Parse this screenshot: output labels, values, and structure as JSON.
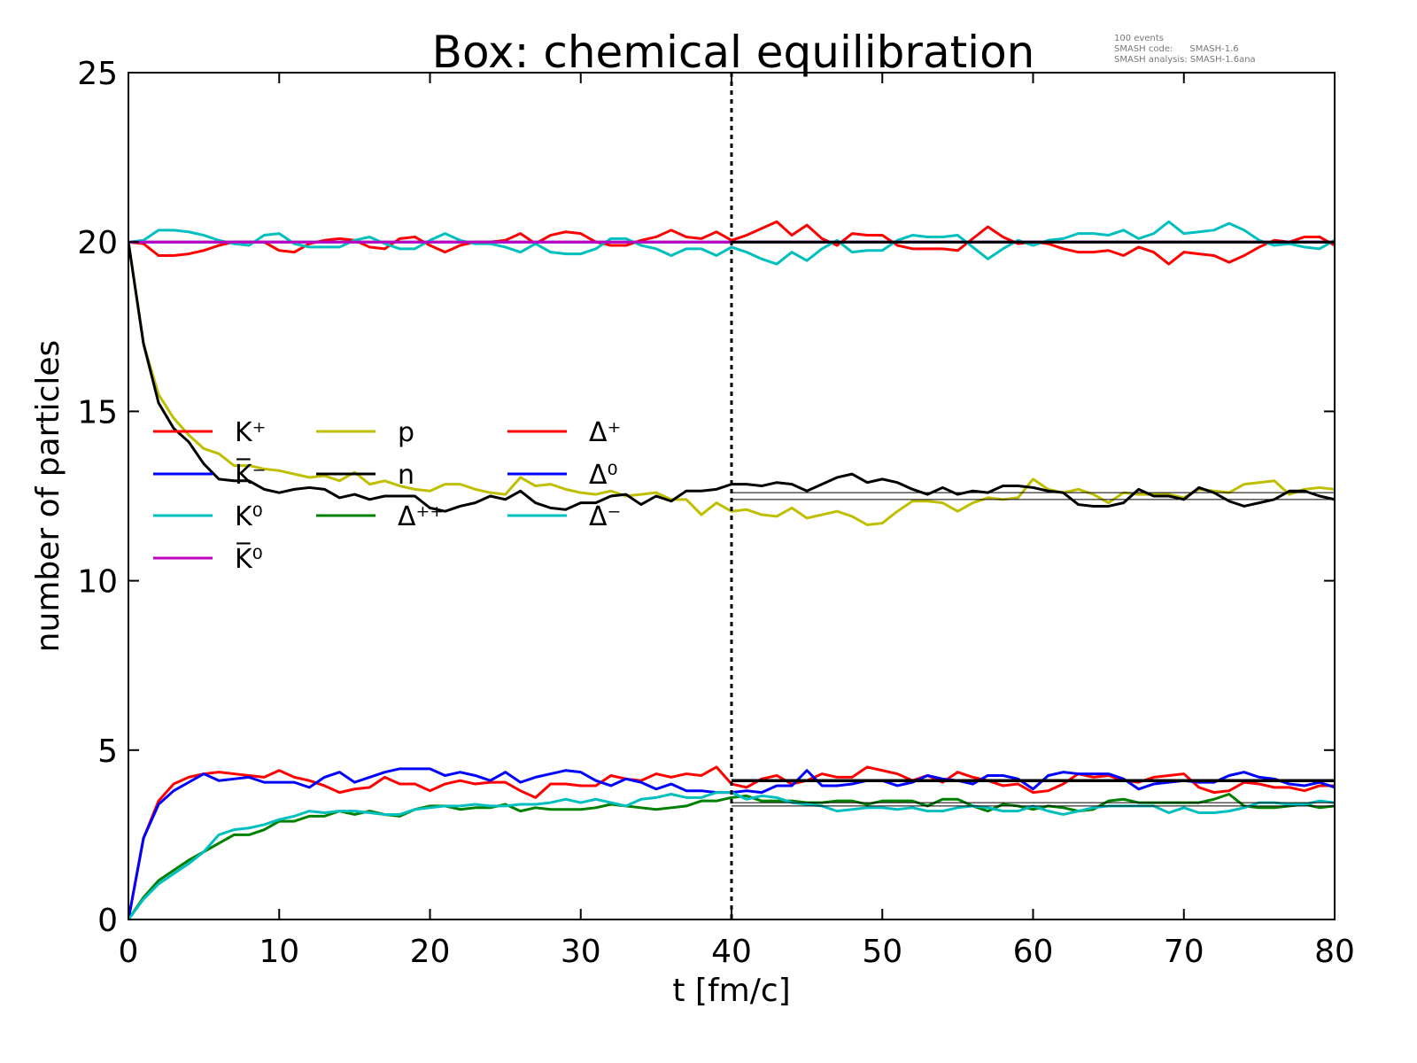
{
  "chart_data": {
    "type": "line",
    "title": "Box: chemical equilibration",
    "annotation": [
      "100 events",
      "SMASH code:      SMASH-1.6",
      "SMASH analysis: SMASH-1.6ana"
    ],
    "xlabel": "t [fm/c]",
    "ylabel": "number of particles",
    "xlim": [
      0,
      80
    ],
    "ylim": [
      0,
      25
    ],
    "xticks": [
      0,
      10,
      20,
      30,
      40,
      50,
      60,
      70,
      80
    ],
    "yticks": [
      0,
      5,
      10,
      15,
      20,
      25
    ],
    "grid": false,
    "legend_placement": "center-left",
    "x_start": 0,
    "x_step": 1,
    "vertical_marker": 40,
    "reference_lines": [
      20,
      12.6,
      12.4,
      4.12,
      4.08,
      3.45,
      3.35
    ],
    "series": [
      {
        "name": "K⁺",
        "color": "#ff0000",
        "values": [
          20,
          19.95,
          19.6,
          19.6,
          19.65,
          19.75,
          19.9,
          20,
          20,
          20,
          19.75,
          19.7,
          19.95,
          20.05,
          20.1,
          20.05,
          19.85,
          19.8,
          20.1,
          20.15,
          19.9,
          19.7,
          19.9,
          20,
          20,
          20.05,
          20.25,
          19.95,
          20.2,
          20.3,
          20.25,
          20,
          19.9,
          19.9,
          20.05,
          20.15,
          20.35,
          20.15,
          20.1,
          20.3,
          20.05,
          20.2,
          20.4,
          20.6,
          20.2,
          20.5,
          20.1,
          19.9,
          20.25,
          20.2,
          20.2,
          19.9,
          19.8,
          19.8,
          19.8,
          19.75,
          20.1,
          20.45,
          20.15,
          19.95,
          20,
          19.95,
          19.8,
          19.7,
          19.7,
          19.75,
          19.6,
          19.85,
          19.7,
          19.35,
          19.7,
          19.65,
          19.6,
          19.4,
          19.6,
          19.85,
          20.05,
          20,
          20.15,
          20.15,
          19.9
        ]
      },
      {
        "name": "K̅⁻",
        "color": "#0000ff",
        "values": [
          20,
          20,
          20,
          20,
          20,
          20,
          20,
          20,
          20,
          20,
          20,
          20,
          20,
          20,
          20,
          20,
          20,
          20,
          20,
          20,
          20,
          20,
          20,
          20,
          20,
          20,
          20,
          20,
          20,
          20,
          20,
          20,
          20,
          20,
          20,
          20,
          20,
          20,
          20,
          20,
          20,
          20,
          20,
          20,
          20,
          20,
          20,
          20,
          20,
          20,
          20,
          20,
          20,
          20,
          20,
          20,
          20,
          20,
          20,
          20,
          20,
          20,
          20,
          20,
          20,
          20,
          20,
          20,
          20,
          20,
          20,
          20,
          20,
          20,
          20,
          20,
          20,
          20,
          20,
          20,
          20
        ]
      },
      {
        "name": "K⁰",
        "color": "#00bfbf",
        "values": [
          20,
          20.05,
          20.35,
          20.35,
          20.3,
          20.2,
          20.05,
          19.95,
          19.9,
          20.2,
          20.25,
          19.95,
          19.85,
          19.85,
          19.85,
          20.05,
          20.15,
          19.95,
          19.8,
          19.8,
          20.05,
          20.25,
          20.05,
          19.95,
          19.95,
          19.85,
          19.7,
          19.95,
          19.7,
          19.65,
          19.65,
          19.8,
          20.1,
          20.1,
          19.9,
          19.8,
          19.6,
          19.8,
          19.8,
          19.6,
          19.85,
          19.7,
          19.5,
          19.35,
          19.7,
          19.45,
          19.8,
          20.05,
          19.7,
          19.75,
          19.75,
          20.05,
          20.2,
          20.15,
          20.15,
          20.2,
          19.85,
          19.5,
          19.8,
          20.05,
          19.9,
          20.05,
          20.1,
          20.25,
          20.25,
          20.2,
          20.35,
          20.1,
          20.25,
          20.6,
          20.25,
          20.3,
          20.35,
          20.55,
          20.35,
          20.05,
          19.9,
          19.95,
          19.85,
          19.8,
          20.05
        ]
      },
      {
        "name": "K̅⁰",
        "color": "#bf00bf",
        "values": [
          20,
          20,
          20,
          20,
          20,
          20,
          20,
          20,
          20,
          20,
          20,
          20,
          20,
          20,
          20,
          20,
          20,
          20,
          20,
          20,
          20,
          20,
          20,
          20,
          20,
          20,
          20,
          20,
          20,
          20,
          20,
          20,
          20,
          20,
          20,
          20,
          20,
          20,
          20,
          20,
          20,
          20,
          20,
          20,
          20,
          20,
          20,
          20,
          20,
          20,
          20,
          20,
          20,
          20,
          20,
          20,
          20,
          20,
          20,
          20,
          20,
          20,
          20,
          20,
          20,
          20,
          20,
          20,
          20,
          20,
          20,
          20,
          20,
          20,
          20,
          20,
          20,
          20,
          20,
          20,
          20
        ]
      },
      {
        "name": "p",
        "color": "#bfbf00",
        "values": [
          20,
          17,
          15.5,
          14.8,
          14.3,
          13.9,
          13.75,
          13.4,
          13.4,
          13.3,
          13.25,
          13.15,
          13.05,
          13.1,
          12.95,
          13.2,
          12.85,
          12.95,
          12.8,
          12.7,
          12.65,
          12.85,
          12.85,
          12.7,
          12.6,
          12.55,
          13.05,
          12.8,
          12.85,
          12.7,
          12.6,
          12.55,
          12.65,
          12.5,
          12.55,
          12.6,
          12.4,
          12.4,
          11.95,
          12.3,
          12.05,
          12.1,
          11.95,
          11.9,
          12.15,
          11.85,
          11.95,
          12.05,
          11.9,
          11.65,
          11.7,
          12.05,
          12.35,
          12.35,
          12.3,
          12.05,
          12.3,
          12.45,
          12.4,
          12.45,
          13,
          12.7,
          12.6,
          12.7,
          12.55,
          12.3,
          12.6,
          12.55,
          12.55,
          12.55,
          12.45,
          12.7,
          12.65,
          12.6,
          12.85,
          12.9,
          12.95,
          12.55,
          12.7,
          12.75,
          12.7
        ]
      },
      {
        "name": "n",
        "color": "#000000",
        "values": [
          20,
          17,
          15.25,
          14.5,
          14.1,
          13.45,
          13,
          12.95,
          12.95,
          12.7,
          12.6,
          12.7,
          12.75,
          12.7,
          12.45,
          12.55,
          12.4,
          12.5,
          12.5,
          12.5,
          12.15,
          12.05,
          12.2,
          12.3,
          12.5,
          12.4,
          12.65,
          12.3,
          12.15,
          12.1,
          12.3,
          12.3,
          12.5,
          12.55,
          12.25,
          12.5,
          12.35,
          12.65,
          12.65,
          12.7,
          12.85,
          12.85,
          12.8,
          12.9,
          12.85,
          12.65,
          12.85,
          13.05,
          13.15,
          12.9,
          13,
          12.9,
          12.7,
          12.55,
          12.75,
          12.55,
          12.65,
          12.6,
          12.8,
          12.8,
          12.75,
          12.65,
          12.6,
          12.25,
          12.2,
          12.2,
          12.3,
          12.7,
          12.5,
          12.5,
          12.4,
          12.75,
          12.6,
          12.35,
          12.2,
          12.3,
          12.4,
          12.65,
          12.65,
          12.5,
          12.4
        ]
      },
      {
        "name": "Δ⁺⁺",
        "color": "#008000",
        "values": [
          0,
          0.65,
          1.15,
          1.45,
          1.75,
          2,
          2.25,
          2.5,
          2.5,
          2.65,
          2.9,
          2.9,
          3.05,
          3.05,
          3.2,
          3.1,
          3.2,
          3.1,
          3.05,
          3.25,
          3.35,
          3.35,
          3.25,
          3.3,
          3.3,
          3.4,
          3.2,
          3.3,
          3.25,
          3.25,
          3.25,
          3.3,
          3.4,
          3.35,
          3.3,
          3.25,
          3.3,
          3.35,
          3.5,
          3.5,
          3.6,
          3.65,
          3.5,
          3.5,
          3.5,
          3.45,
          3.45,
          3.5,
          3.5,
          3.4,
          3.5,
          3.5,
          3.5,
          3.35,
          3.55,
          3.55,
          3.35,
          3.2,
          3.4,
          3.35,
          3.25,
          3.35,
          3.3,
          3.2,
          3.25,
          3.5,
          3.55,
          3.45,
          3.45,
          3.45,
          3.45,
          3.45,
          3.55,
          3.7,
          3.35,
          3.3,
          3.3,
          3.35,
          3.4,
          3.3,
          3.35
        ]
      },
      {
        "name": "Δ⁺",
        "color": "#ff0000",
        "values": [
          0,
          2.4,
          3.5,
          4,
          4.2,
          4.3,
          4.35,
          4.3,
          4.25,
          4.2,
          4.4,
          4.2,
          4.1,
          3.95,
          3.75,
          3.85,
          3.9,
          4.2,
          4,
          4,
          3.8,
          4,
          4.1,
          4,
          4.05,
          4.05,
          3.8,
          3.6,
          4,
          4,
          3.95,
          3.95,
          4.25,
          4.15,
          4.1,
          4.3,
          4.2,
          4.3,
          4.25,
          4.5,
          4,
          3.9,
          4.15,
          4.25,
          4,
          4.1,
          4.3,
          4.2,
          4.2,
          4.5,
          4.4,
          4.3,
          4.1,
          4.25,
          4.05,
          4.35,
          4.2,
          4.1,
          3.95,
          4,
          3.75,
          3.8,
          4,
          4.3,
          4.2,
          4.25,
          4.1,
          4.05,
          4.2,
          4.25,
          4.3,
          3.9,
          3.75,
          3.8,
          4.05,
          4,
          3.9,
          3.9,
          3.8,
          3.95,
          3.95
        ]
      },
      {
        "name": "Δ⁰",
        "color": "#0000ff",
        "values": [
          0,
          2.4,
          3.4,
          3.8,
          4.05,
          4.3,
          4.1,
          4.15,
          4.2,
          4.05,
          4.05,
          4.05,
          3.9,
          4.2,
          4.35,
          4.05,
          4.2,
          4.35,
          4.45,
          4.45,
          4.45,
          4.25,
          4.35,
          4.25,
          4.1,
          4.35,
          4.05,
          4.2,
          4.3,
          4.4,
          4.35,
          4.1,
          3.95,
          4.15,
          4.05,
          3.85,
          4,
          3.8,
          3.8,
          3.75,
          3.75,
          3.8,
          3.75,
          3.95,
          3.95,
          4.4,
          3.95,
          3.95,
          4,
          4.1,
          4.1,
          3.95,
          4.05,
          4.25,
          4.15,
          4.1,
          4,
          4.25,
          4.25,
          4.15,
          3.85,
          4.25,
          4.35,
          4.3,
          4.3,
          4.3,
          4.15,
          3.85,
          4,
          4.05,
          4.1,
          4.05,
          4.05,
          4.25,
          4.35,
          4.2,
          4.15,
          4,
          3.95,
          4.05,
          3.9
        ]
      },
      {
        "name": "Δ⁻",
        "color": "#00bfbf",
        "values": [
          0,
          0.6,
          1.05,
          1.35,
          1.65,
          2,
          2.5,
          2.65,
          2.7,
          2.8,
          2.95,
          3.05,
          3.2,
          3.15,
          3.2,
          3.2,
          3.15,
          3.1,
          3.1,
          3.25,
          3.3,
          3.35,
          3.35,
          3.4,
          3.35,
          3.35,
          3.4,
          3.4,
          3.45,
          3.55,
          3.45,
          3.55,
          3.45,
          3.35,
          3.55,
          3.6,
          3.7,
          3.6,
          3.6,
          3.75,
          3.75,
          3.55,
          3.65,
          3.6,
          3.45,
          3.4,
          3.35,
          3.2,
          3.25,
          3.3,
          3.3,
          3.25,
          3.3,
          3.2,
          3.2,
          3.3,
          3.35,
          3.3,
          3.2,
          3.2,
          3.35,
          3.2,
          3.1,
          3.2,
          3.3,
          3.35,
          3.35,
          3.35,
          3.35,
          3.15,
          3.3,
          3.15,
          3.15,
          3.2,
          3.3,
          3.45,
          3.45,
          3.4,
          3.4,
          3.5,
          3.45
        ]
      }
    ]
  }
}
